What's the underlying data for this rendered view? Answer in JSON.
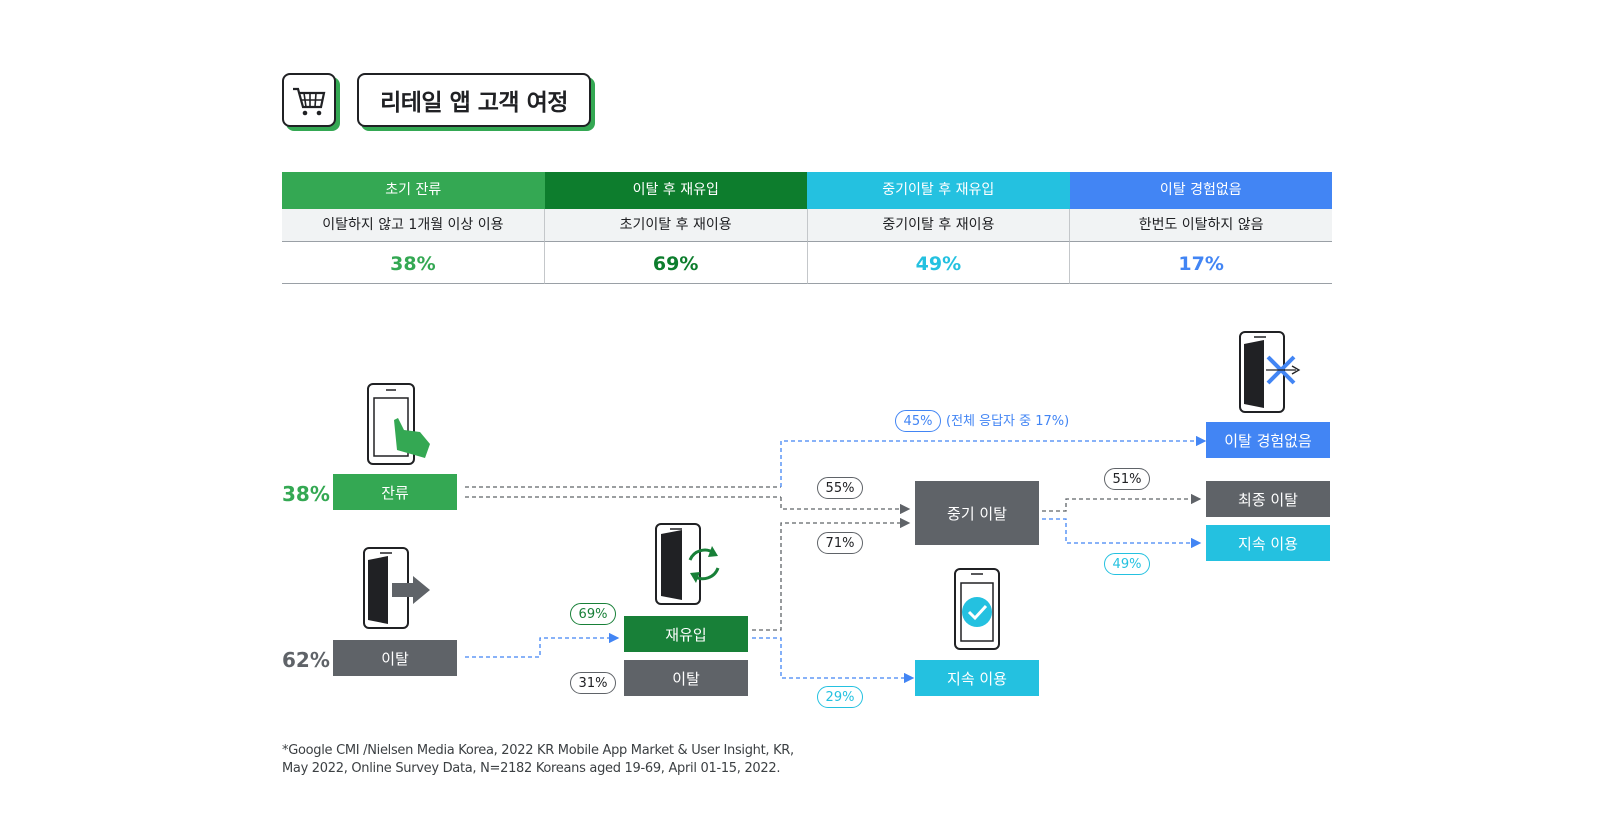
{
  "title": "리테일 앱 고객 여정",
  "icons": {
    "header": "shopping-cart-icon"
  },
  "colors": {
    "green": "#34a853",
    "dark_green": "#188038",
    "cyan": "#24c1e0",
    "blue": "#4285f4",
    "gray": "#5f6368"
  },
  "table": {
    "columns": [
      {
        "header": "초기 잔류",
        "desc": "이탈하지 않고 1개월 이상 이용",
        "value": "38%",
        "color": "#34a853"
      },
      {
        "header": "이탈 후 재유입",
        "desc": "초기이탈 후 재이용",
        "value": "69%",
        "color": "#0d7d2d"
      },
      {
        "header": "중기이탈 후 재유입",
        "desc": "중기이탈 후 재이용",
        "value": "49%",
        "color": "#24c1e0"
      },
      {
        "header": "이탈 경험없음",
        "desc": "한번도 이탈하지 않음",
        "value": "17%",
        "color": "#4285f4"
      }
    ]
  },
  "flow": {
    "retain": {
      "pct": "38%",
      "label": "잔류"
    },
    "churn": {
      "pct": "62%",
      "label": "이탈"
    },
    "reentry": {
      "label": "재유입"
    },
    "churn2": {
      "label": "이탈"
    },
    "mid_churn": {
      "label": "중기 이탈"
    },
    "no_churn": {
      "label": "이탈 경험없음"
    },
    "final_churn": {
      "label": "최종 이탈"
    },
    "continue_top": {
      "label": "지속 이용"
    },
    "continue_bottom": {
      "label": "지속 이용"
    },
    "pills": {
      "p45": "45%",
      "p45_note": "(전체 응답자 중 17%)",
      "p55": "55%",
      "p71": "71%",
      "p69": "69%",
      "p31": "31%",
      "p29": "29%",
      "p51": "51%",
      "p49": "49%"
    }
  },
  "footnote": {
    "line1": "*Google CMI /Nielsen Media Korea, 2022 KR Mobile App Market & User Insight, KR,",
    "line2": "May 2022, Online Survey Data, N=2182 Koreans aged 19-69, April 01-15, 2022."
  }
}
